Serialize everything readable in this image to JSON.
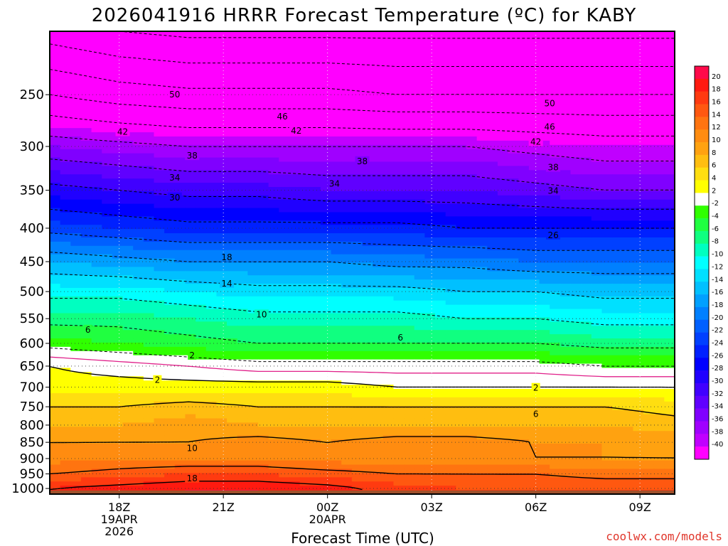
{
  "title": "2026041916 HRRR Forecast Temperature (ºC) for KABY",
  "credit": "coolwx.com/models",
  "chart_data": {
    "type": "heatmap",
    "title": "2026041916 HRRR Forecast Temperature (ºC) for KABY",
    "xlabel": "Forecast Time (UTC)",
    "ylabel": "",
    "x_units": "forecast hour (0 = 2026041916)",
    "xlim": [
      0,
      18
    ],
    "y_scale": "log-pressure (hPa)",
    "ylim": [
      1020,
      200
    ],
    "x_ticks": [
      {
        "hour": 2,
        "lines": [
          "18Z",
          "19APR",
          "2026"
        ]
      },
      {
        "hour": 5,
        "lines": [
          "21Z"
        ]
      },
      {
        "hour": 8,
        "lines": [
          "00Z",
          "20APR"
        ]
      },
      {
        "hour": 11,
        "lines": [
          "03Z"
        ]
      },
      {
        "hour": 14,
        "lines": [
          "06Z"
        ]
      },
      {
        "hour": 17,
        "lines": [
          "09Z"
        ]
      }
    ],
    "y_ticks": [
      250,
      300,
      350,
      400,
      450,
      500,
      550,
      600,
      650,
      700,
      750,
      800,
      850,
      900,
      950,
      1000
    ],
    "grid": true,
    "colorbar": {
      "placement": "right",
      "labels": [
        "20",
        "18",
        "16",
        "14",
        "12",
        "10",
        "8",
        "6",
        "4",
        "2",
        "-2",
        "-4",
        "-6",
        "-8",
        "-10",
        "-12",
        "-14",
        "-16",
        "-18",
        "-20",
        "-22",
        "-24",
        "-26",
        "-28",
        "-30",
        "-32",
        "-34",
        "-36",
        "-38",
        "-40"
      ],
      "bins": [
        {
          "lo": 20,
          "hi": 22,
          "color": "#ff0a4a"
        },
        {
          "lo": 18,
          "hi": 20,
          "color": "#ff1a10"
        },
        {
          "lo": 16,
          "hi": 18,
          "color": "#ff3a10"
        },
        {
          "lo": 14,
          "hi": 16,
          "color": "#ff5810"
        },
        {
          "lo": 12,
          "hi": 14,
          "color": "#ff7410"
        },
        {
          "lo": 10,
          "hi": 12,
          "color": "#ff8c10"
        },
        {
          "lo": 8,
          "hi": 10,
          "color": "#ffa210"
        },
        {
          "lo": 6,
          "hi": 8,
          "color": "#ffbe10"
        },
        {
          "lo": 4,
          "hi": 6,
          "color": "#ffde10"
        },
        {
          "lo": 2,
          "hi": 4,
          "color": "#ffff00"
        },
        {
          "lo": -2,
          "hi": 2,
          "color": "#ffffff"
        },
        {
          "lo": -4,
          "hi": -2,
          "color": "#30ff00"
        },
        {
          "lo": -6,
          "hi": -4,
          "color": "#20ff40"
        },
        {
          "lo": -8,
          "hi": -6,
          "color": "#10ff80"
        },
        {
          "lo": -10,
          "hi": -8,
          "color": "#00ffc0"
        },
        {
          "lo": -12,
          "hi": -10,
          "color": "#00ffff"
        },
        {
          "lo": -14,
          "hi": -12,
          "color": "#00e0ff"
        },
        {
          "lo": -16,
          "hi": -14,
          "color": "#00c0ff"
        },
        {
          "lo": -18,
          "hi": -16,
          "color": "#00a0ff"
        },
        {
          "lo": -20,
          "hi": -18,
          "color": "#0080ff"
        },
        {
          "lo": -22,
          "hi": -20,
          "color": "#0060ff"
        },
        {
          "lo": -24,
          "hi": -22,
          "color": "#0040ff"
        },
        {
          "lo": -26,
          "hi": -24,
          "color": "#0020ff"
        },
        {
          "lo": -28,
          "hi": -26,
          "color": "#0000ff"
        },
        {
          "lo": -30,
          "hi": -28,
          "color": "#2000ff"
        },
        {
          "lo": -32,
          "hi": -30,
          "color": "#4000ff"
        },
        {
          "lo": -34,
          "hi": -32,
          "color": "#6000ff"
        },
        {
          "lo": -36,
          "hi": -34,
          "color": "#8000ff"
        },
        {
          "lo": -38,
          "hi": -36,
          "color": "#a000ff"
        },
        {
          "lo": -40,
          "hi": -38,
          "color": "#c000ff"
        },
        {
          "lo": -60,
          "hi": -40,
          "color": "#ff00ff"
        }
      ]
    },
    "below_ground_color": "#a0522d",
    "freezing_line_color": "#e0208a",
    "profile_hours": [
      0,
      2,
      4,
      6,
      8,
      10,
      12,
      14,
      16,
      18
    ],
    "profiles": [
      {
        "p": 1000,
        "t": [
          18,
          19,
          20,
          20,
          19,
          17,
          16,
          16,
          16,
          16
        ]
      },
      {
        "p": 950,
        "t": [
          14,
          15,
          16,
          16,
          15,
          14,
          14,
          14,
          13,
          13
        ]
      },
      {
        "p": 900,
        "t": [
          11,
          12,
          12,
          12,
          11,
          11,
          11,
          10,
          10,
          10
        ]
      },
      {
        "p": 850,
        "t": [
          10,
          10,
          10,
          11,
          10,
          11,
          11,
          10,
          10,
          9
        ]
      },
      {
        "p": 800,
        "t": [
          8,
          8,
          9,
          8,
          8,
          8,
          8,
          8,
          8,
          7
        ]
      },
      {
        "p": 750,
        "t": [
          6,
          6,
          7,
          6,
          6,
          6,
          6,
          6,
          6,
          5
        ]
      },
      {
        "p": 700,
        "t": [
          3,
          3,
          3,
          3,
          3,
          2,
          2,
          2,
          2,
          2
        ]
      },
      {
        "p": 650,
        "t": [
          2,
          1,
          0,
          -1,
          -1,
          -1,
          -1,
          -1,
          -2,
          -2
        ]
      },
      {
        "p": 600,
        "t": [
          -3,
          -4,
          -5,
          -6,
          -6,
          -6,
          -6,
          -6,
          -7,
          -7
        ]
      },
      {
        "p": 550,
        "t": [
          -7,
          -7,
          -8,
          -9,
          -9,
          -9,
          -10,
          -10,
          -11,
          -11
        ]
      },
      {
        "p": 500,
        "t": [
          -11,
          -11,
          -12,
          -13,
          -13,
          -13,
          -14,
          -14,
          -15,
          -15
        ]
      },
      {
        "p": 450,
        "t": [
          -16,
          -17,
          -18,
          -18,
          -18,
          -19,
          -19,
          -20,
          -20,
          -20
        ]
      },
      {
        "p": 400,
        "t": [
          -23,
          -24,
          -25,
          -25,
          -25,
          -25,
          -26,
          -26,
          -26,
          -26
        ]
      },
      {
        "p": 350,
        "t": [
          -29,
          -30,
          -31,
          -31,
          -32,
          -32,
          -32,
          -33,
          -34,
          -34
        ]
      },
      {
        "p": 300,
        "t": [
          -36,
          -37,
          -38,
          -38,
          -38,
          -38,
          -38,
          -39,
          -40,
          -40
        ]
      },
      {
        "p": 250,
        "t": [
          -46,
          -48,
          -49,
          -49,
          -49,
          -50,
          -50,
          -50,
          -50,
          -50
        ]
      },
      {
        "p": 200,
        "t": [
          -56,
          -58,
          -59,
          -59,
          -59,
          -59,
          -59,
          -59,
          -59,
          -59
        ]
      }
    ],
    "contour_labels": [
      {
        "hour": 3.6,
        "p": 250,
        "text": "50"
      },
      {
        "hour": 14.4,
        "p": 258,
        "text": "50"
      },
      {
        "hour": 6.7,
        "p": 270,
        "text": "46"
      },
      {
        "hour": 14.4,
        "p": 280,
        "text": "46"
      },
      {
        "hour": 2.1,
        "p": 285,
        "text": "42"
      },
      {
        "hour": 7.1,
        "p": 284,
        "text": "42"
      },
      {
        "hour": 14.0,
        "p": 295,
        "text": "42"
      },
      {
        "hour": 4.1,
        "p": 310,
        "text": "38"
      },
      {
        "hour": 9.0,
        "p": 316,
        "text": "38"
      },
      {
        "hour": 14.5,
        "p": 323,
        "text": "38"
      },
      {
        "hour": 3.6,
        "p": 335,
        "text": "34"
      },
      {
        "hour": 8.2,
        "p": 342,
        "text": "34"
      },
      {
        "hour": 14.5,
        "p": 351,
        "text": "34"
      },
      {
        "hour": 3.6,
        "p": 359,
        "text": "30"
      },
      {
        "hour": 14.5,
        "p": 410,
        "text": "26"
      },
      {
        "hour": 5.1,
        "p": 443,
        "text": "18"
      },
      {
        "hour": 5.1,
        "p": 486,
        "text": "14"
      },
      {
        "hour": 6.1,
        "p": 542,
        "text": "10"
      },
      {
        "hour": 1.1,
        "p": 572,
        "text": "6"
      },
      {
        "hour": 10.1,
        "p": 588,
        "text": "6"
      },
      {
        "hour": 4.1,
        "p": 626,
        "text": "2"
      },
      {
        "hour": 3.1,
        "p": 683,
        "text": "2"
      },
      {
        "hour": 14.0,
        "p": 702,
        "text": "2"
      },
      {
        "hour": 14.0,
        "p": 770,
        "text": "6"
      },
      {
        "hour": 4.1,
        "p": 868,
        "text": "10"
      },
      {
        "hour": 4.1,
        "p": 965,
        "text": "18"
      }
    ]
  }
}
